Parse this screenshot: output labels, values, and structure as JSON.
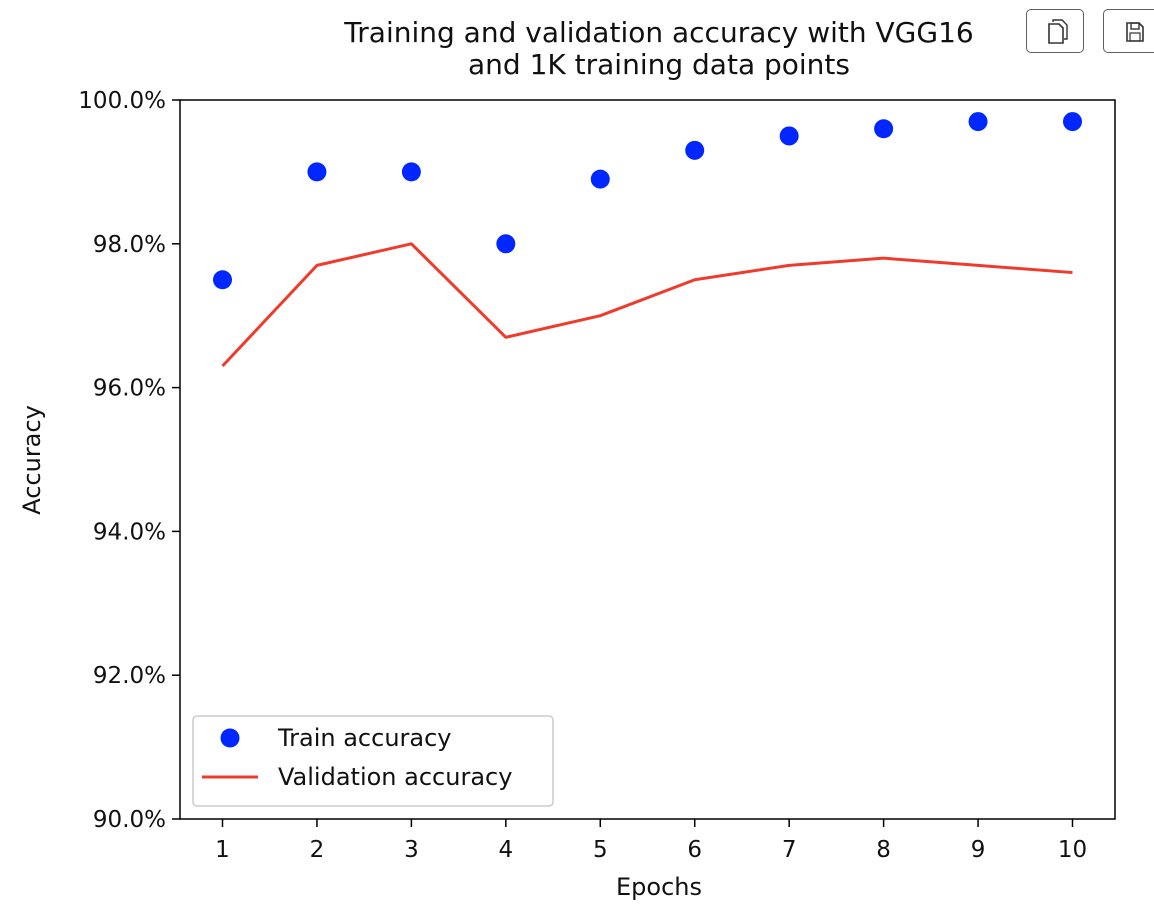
{
  "toolbar": {
    "copy_icon": "copy-icon",
    "save_icon": "save-icon"
  },
  "chart_data": {
    "type": "line",
    "title_lines": [
      "Training and validation accuracy with VGG16",
      "and 1K training data points"
    ],
    "xlabel": "Epochs",
    "ylabel": "Accuracy",
    "x": [
      1,
      2,
      3,
      4,
      5,
      6,
      7,
      8,
      9,
      10
    ],
    "xlim": [
      0.55,
      10.45
    ],
    "ylim": [
      90.0,
      100.0
    ],
    "y_ticks": [
      90,
      92,
      94,
      96,
      98,
      100
    ],
    "y_tick_labels": [
      "90.0%",
      "92.0%",
      "94.0%",
      "96.0%",
      "98.0%",
      "100.0%"
    ],
    "x_tick_labels": [
      "1",
      "2",
      "3",
      "4",
      "5",
      "6",
      "7",
      "8",
      "9",
      "10"
    ],
    "grid": false,
    "legend_position": "lower-left",
    "series": [
      {
        "name": "Train accuracy",
        "style": "markers",
        "color": "#0027ff",
        "values": [
          97.5,
          99.0,
          99.0,
          98.0,
          98.9,
          99.3,
          99.5,
          99.6,
          99.7,
          99.7
        ]
      },
      {
        "name": "Validation accuracy",
        "style": "line",
        "color": "#ef3b2c",
        "values": [
          96.3,
          97.7,
          98.0,
          96.7,
          97.0,
          97.5,
          97.7,
          97.8,
          97.7,
          97.6
        ]
      }
    ]
  }
}
